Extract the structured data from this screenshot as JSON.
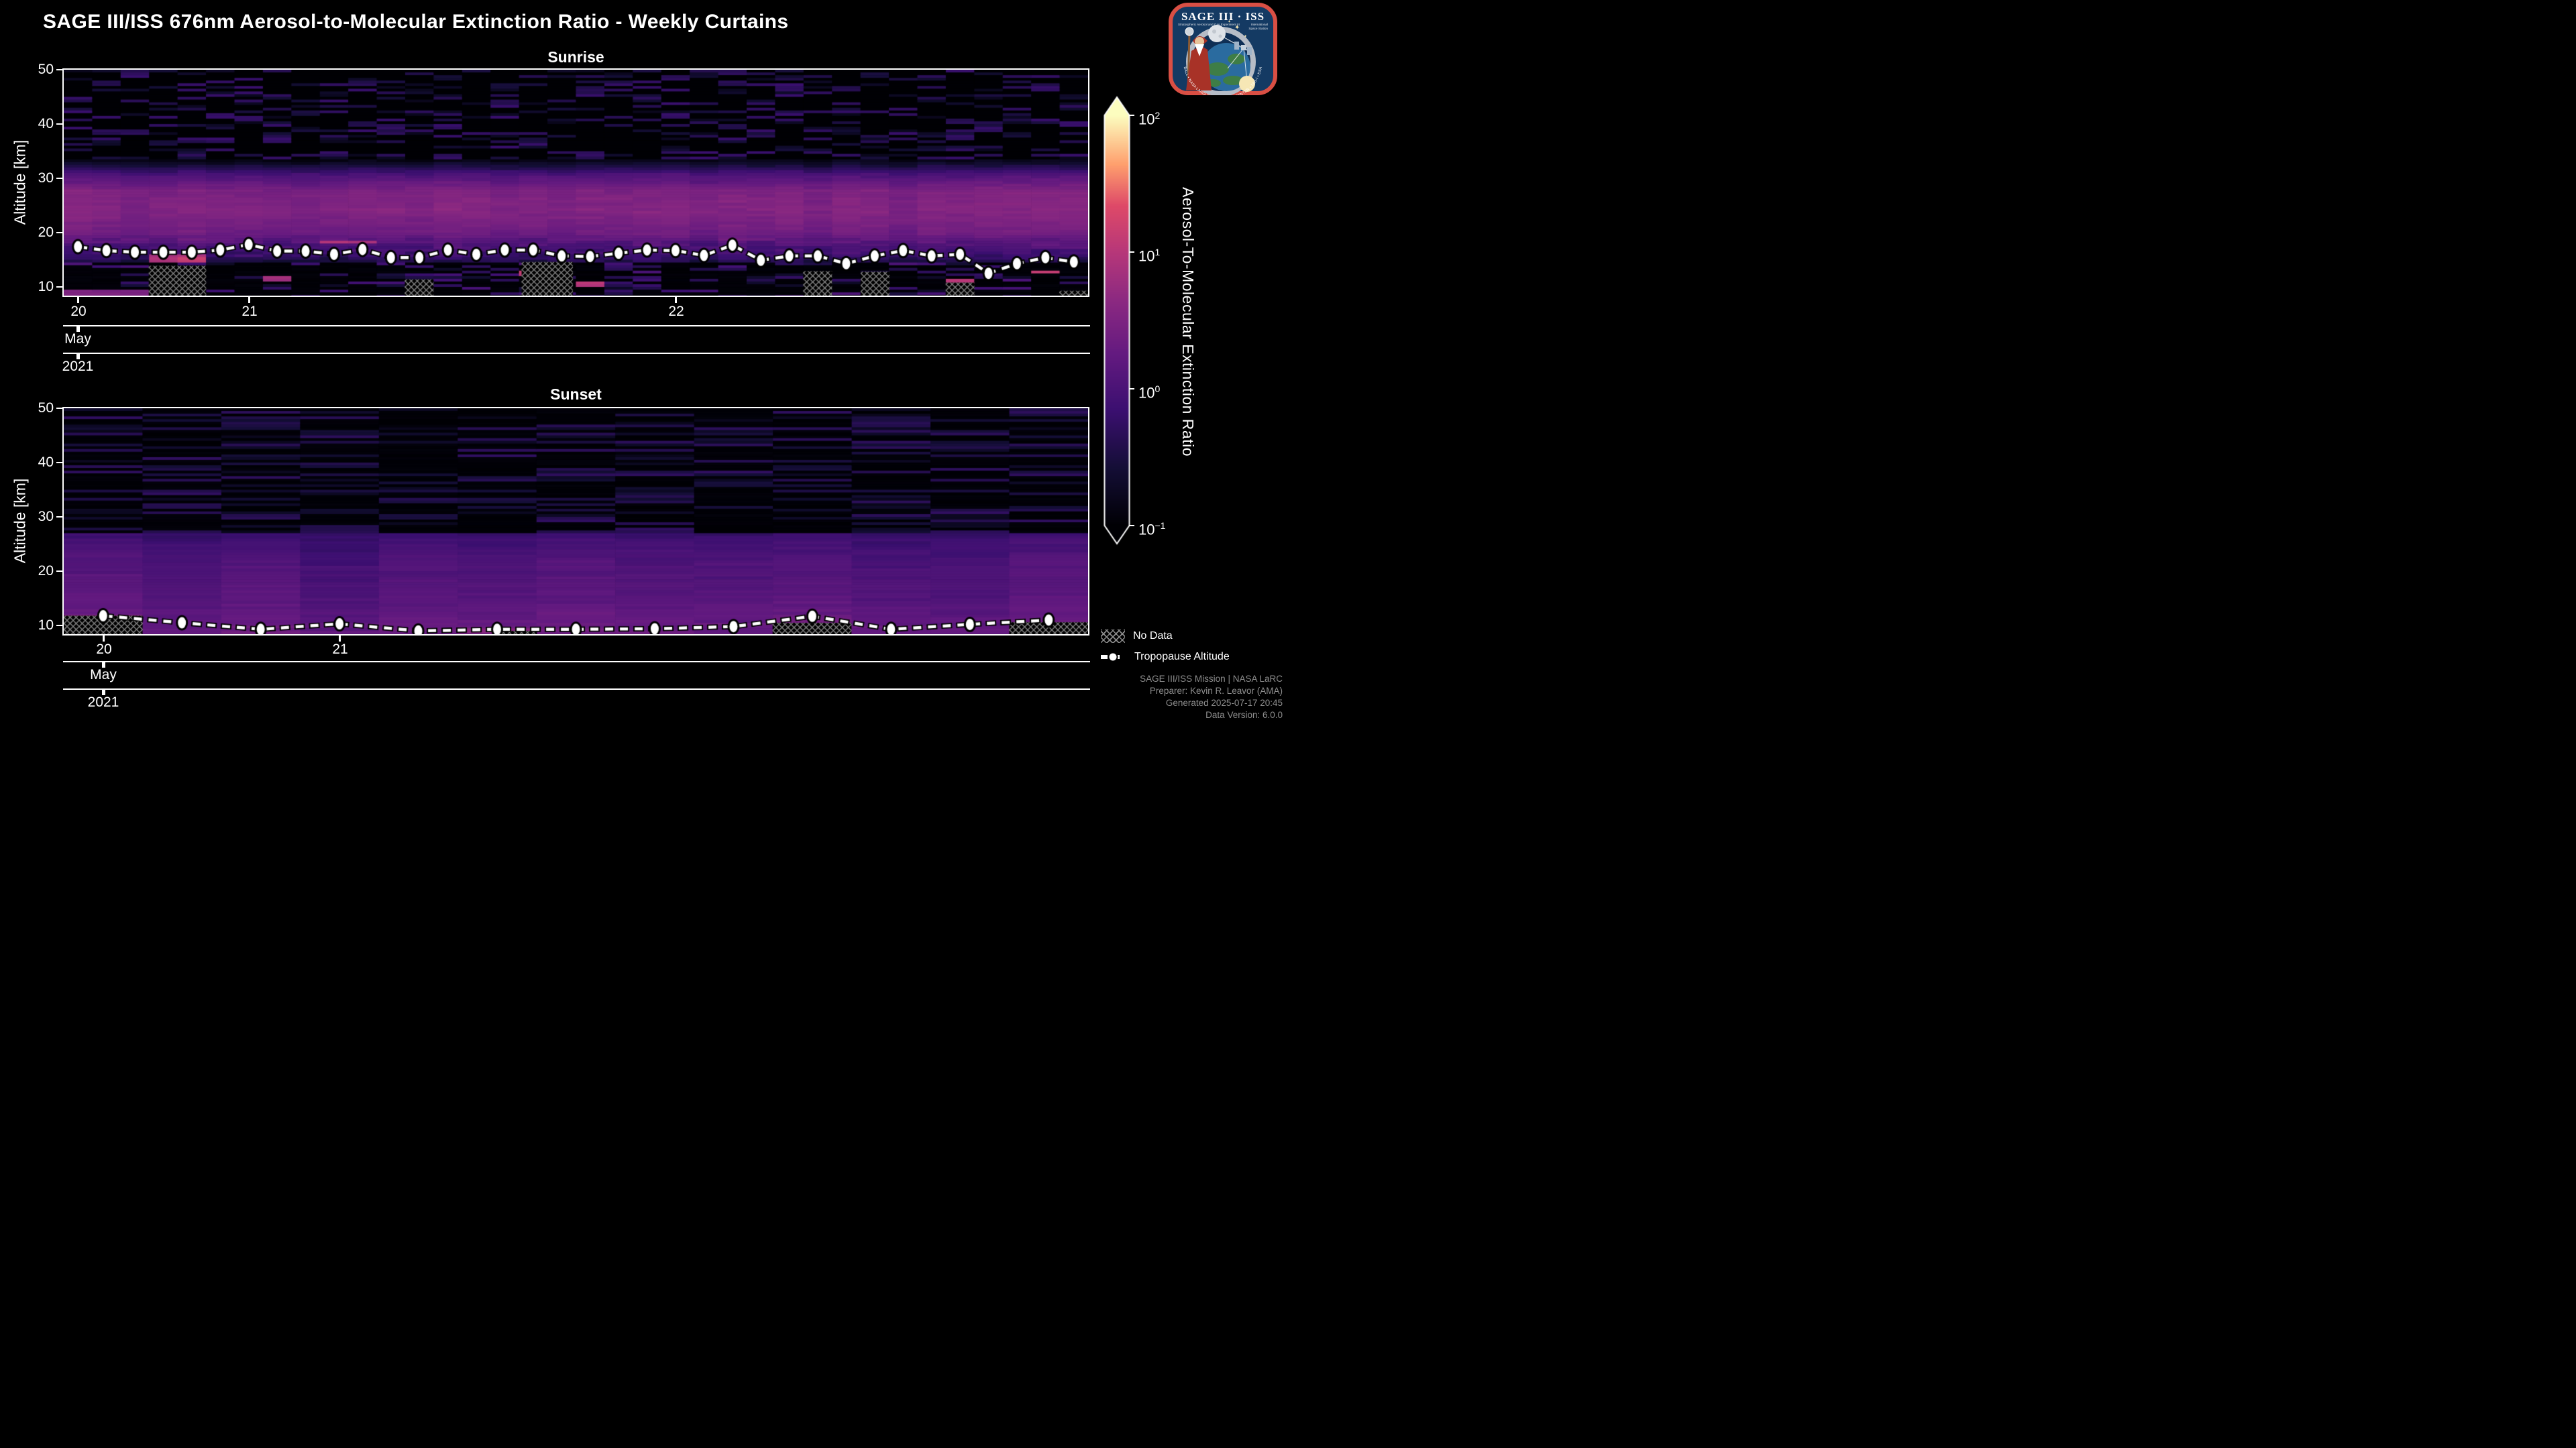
{
  "figure": {
    "background": "#000000",
    "title": "SAGE III/ISS 676nm Aerosol-to-Molecular Extinction Ratio - Weekly Curtains"
  },
  "logo": {
    "mission": "SAGE III · ISS",
    "subtitle_left": "Stratospheric Aerosol and Gas Experiment III",
    "subtitle_right_1": "International",
    "subtitle_right_2": "Space Station",
    "ring_text": "BALL • NASA LANGLEY RESEARCH CENTER • TAS-I • ESA"
  },
  "plots": [
    {
      "title": "Sunrise",
      "ylabel": "Altitude [km]",
      "yticks": [
        "50",
        "40",
        "30",
        "20",
        "10"
      ],
      "xticks": [
        "20",
        "21",
        "22"
      ],
      "month": "May",
      "year": "2021"
    },
    {
      "title": "Sunset",
      "ylabel": "Altitude [km]",
      "yticks": [
        "50",
        "40",
        "30",
        "20",
        "10"
      ],
      "xticks": [
        "20",
        "21"
      ],
      "month": "May",
      "year": "2021"
    }
  ],
  "colorbar": {
    "label": "Aerosol-To-Molecular Extinction Ratio",
    "ticks": [
      {
        "base": "10",
        "exp": "2"
      },
      {
        "base": "10",
        "exp": "1"
      },
      {
        "base": "10",
        "exp": "0"
      },
      {
        "base": "10",
        "exp": "−1"
      }
    ]
  },
  "legend": {
    "no_data": "No Data",
    "tropopause": "Tropopause Altitude"
  },
  "footer": {
    "lines": [
      "SAGE III/ISS Mission | NASA LaRC",
      "Preparer: Kevin R. Leavor (AMA)",
      "Generated 2025-07-17 20:45",
      "Data Version: 6.0.0"
    ]
  },
  "chart_data": {
    "type": "heatmap",
    "title": "SAGE III/ISS 676nm Aerosol-to-Molecular Extinction Ratio - Weekly Curtains",
    "value_name": "Aerosol-To-Molecular Extinction Ratio",
    "value_scale": "log10",
    "value_range": [
      0.1,
      100
    ],
    "xlabel_levels": [
      "week-of-year",
      "May",
      "2021"
    ],
    "ylabel": "Altitude [km]",
    "altitude_range_km": [
      8.4,
      50
    ],
    "altitude_ticks_km": [
      50,
      40,
      30,
      20,
      10
    ],
    "legend_position": "lower right",
    "grid": false,
    "render_seed": 20210520,
    "colormap": {
      "name": "magma",
      "stops": [
        [
          0.0,
          "#000004"
        ],
        [
          0.141,
          "#140e36"
        ],
        [
          0.282,
          "#3b0f70"
        ],
        [
          0.42,
          "#641a80"
        ],
        [
          0.55,
          "#8c2981"
        ],
        [
          0.668,
          "#b73779"
        ],
        [
          0.78,
          "#de4968"
        ],
        [
          0.88,
          "#fe9f6d"
        ],
        [
          1.0,
          "#fcfdbf"
        ]
      ]
    },
    "panels": [
      {
        "name": "Sunrise",
        "columns": 36,
        "col_sigma": 0.07,
        "week_ticks": [
          {
            "label": "20",
            "col": 0
          },
          {
            "label": "21",
            "col": 6
          },
          {
            "label": "22",
            "col": 21
          }
        ],
        "tropopause_altitude_km": [
          17.4,
          16.7,
          16.4,
          16.4,
          16.4,
          16.8,
          17.8,
          16.6,
          16.6,
          16.0,
          16.9,
          15.4,
          15.4,
          16.8,
          16.0,
          16.8,
          16.8,
          15.7,
          15.6,
          16.2,
          16.8,
          16.7,
          15.8,
          17.7,
          14.9,
          15.7,
          15.7,
          14.3,
          15.7,
          16.7,
          15.7,
          16.0,
          12.5,
          14.3,
          15.4,
          14.6
        ],
        "no_data_regions": [
          {
            "x0": 0.083,
            "x1": 0.139,
            "top_km": 13.9
          },
          {
            "x0": 0.333,
            "x1": 0.361,
            "top_km": 11.4
          },
          {
            "x0": 0.447,
            "x1": 0.497,
            "top_km": 14.6
          },
          {
            "x0": 0.722,
            "x1": 0.75,
            "top_km": 12.9
          },
          {
            "x0": 0.778,
            "x1": 0.806,
            "top_km": 12.8
          },
          {
            "x0": 0.861,
            "x1": 0.889,
            "top_km": 10.8
          },
          {
            "x0": 0.972,
            "x1": 1.0,
            "top_km": 9.3
          }
        ],
        "mean_log10_profile": [
          [
            50,
            -1.0
          ],
          [
            34,
            -1.0
          ],
          [
            31,
            0.0
          ],
          [
            28,
            0.5
          ],
          [
            24,
            0.55
          ],
          [
            20,
            0.35
          ],
          [
            18,
            0.05
          ],
          [
            16,
            -0.15
          ],
          [
            14.5,
            -0.55
          ],
          [
            12,
            -0.8
          ],
          [
            8.4,
            -0.9
          ]
        ],
        "texture_regions": [
          {
            "from": 50,
            "to": 33.5,
            "type": "sparse",
            "floor": -1.02,
            "p": 0.32,
            "a0": 0.2,
            "a1": 0.85
          },
          {
            "from": 33.5,
            "to": 19,
            "type": "smooth",
            "sigma": 0.06
          },
          {
            "from": 19,
            "to": 14.5,
            "type": "smooth",
            "sigma": 0.12
          },
          {
            "from": 14.5,
            "to": 8.4,
            "type": "sparse",
            "floor": -0.97,
            "p": 0.28,
            "a0": 0.25,
            "a1": 1.0
          }
        ],
        "anomalies": [
          {
            "x0": 0.083,
            "x1": 0.139,
            "km_lo": 14.8,
            "km_hi": 16.0,
            "log10": 0.9
          },
          {
            "x0": 0.111,
            "x1": 0.139,
            "km_lo": 14.8,
            "km_hi": 15.6,
            "log10": 1.15
          },
          {
            "x0": 0.251,
            "x1": 0.306,
            "km_lo": 18.3,
            "km_hi": 18.9,
            "log10": 0.95
          },
          {
            "x0": 0.195,
            "x1": 0.223,
            "km_lo": 11.3,
            "km_hi": 12.2,
            "log10": 0.8
          },
          {
            "x0": 0.0,
            "x1": 0.083,
            "km_lo": 8.5,
            "km_hi": 9.5,
            "log10": 0.5
          },
          {
            "x0": 0.451,
            "x1": 0.474,
            "km_lo": 12.5,
            "km_hi": 13.3,
            "log10": 1.1
          },
          {
            "x0": 0.507,
            "x1": 0.53,
            "km_lo": 10.3,
            "km_hi": 11.2,
            "log10": 1.0
          },
          {
            "x0": 0.861,
            "x1": 0.889,
            "km_lo": 10.9,
            "km_hi": 11.6,
            "log10": 1.0
          },
          {
            "x0": 0.952,
            "x1": 0.978,
            "km_lo": 12.6,
            "km_hi": 13.3,
            "log10": 1.15
          }
        ]
      },
      {
        "name": "Sunset",
        "columns": 13,
        "col_sigma": 0.1,
        "week_ticks": [
          {
            "label": "20",
            "col": 0
          },
          {
            "label": "21",
            "col": 3
          }
        ],
        "tropopause_altitude_km": [
          11.8,
          10.5,
          9.3,
          10.3,
          9.0,
          9.3,
          9.3,
          9.4,
          9.8,
          11.7,
          9.3,
          10.2,
          11.0
        ],
        "no_data_regions": [
          {
            "x0": 0.0,
            "x1": 0.077,
            "top_km": 11.8
          },
          {
            "x0": 0.423,
            "x1": 0.462,
            "top_km": 9.0
          },
          {
            "x0": 0.692,
            "x1": 0.769,
            "top_km": 10.5
          },
          {
            "x0": 0.923,
            "x1": 1.0,
            "top_km": 10.6
          }
        ],
        "mean_log10_profile": [
          [
            50,
            -0.95
          ],
          [
            40,
            -0.88
          ],
          [
            30,
            -0.5
          ],
          [
            26,
            -0.12
          ],
          [
            22,
            0.02
          ],
          [
            16,
            0.12
          ],
          [
            12,
            0.2
          ],
          [
            10,
            0.28
          ],
          [
            8.4,
            0.32
          ]
        ],
        "texture_regions": [
          {
            "from": 50,
            "to": 27,
            "type": "sparse",
            "floor": -0.97,
            "p": 0.38,
            "a0": 0.15,
            "a1": 0.7
          },
          {
            "from": 27,
            "to": 8.4,
            "type": "smooth",
            "sigma": 0.06
          }
        ],
        "anomalies": [
          {
            "x0": 0.0,
            "x1": 0.077,
            "km_lo": 11.8,
            "km_hi": 12.4,
            "log10": 0.6
          },
          {
            "x0": 0.423,
            "x1": 0.462,
            "km_lo": 9.0,
            "km_hi": 9.9,
            "log10": 0.55
          },
          {
            "x0": 0.923,
            "x1": 1.0,
            "km_lo": 9.2,
            "km_hi": 10.8,
            "log10": 0.7
          },
          {
            "x0": 0.694,
            "x1": 0.769,
            "km_lo": 10.6,
            "km_hi": 11.2,
            "log10": 0.45
          }
        ]
      }
    ]
  }
}
